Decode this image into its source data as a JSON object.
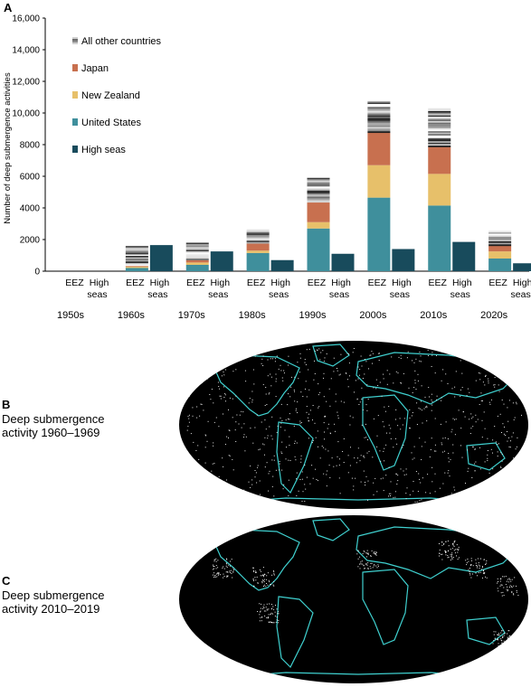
{
  "panel_a": {
    "letter": "A"
  },
  "panel_b": {
    "letter": "B",
    "caption_line1": "Deep submergence",
    "caption_line2": "activity 1960–1969"
  },
  "panel_c": {
    "letter": "C",
    "caption_line1": "Deep submergence",
    "caption_line2": "activity 2010–2019"
  },
  "chart_data": {
    "type": "bar",
    "stacked": true,
    "ylabel": "Number of deep submergence activities",
    "ylim": [
      0,
      16000
    ],
    "yticks": [
      "0",
      "2000",
      "4000",
      "6000",
      "8000",
      "10,000",
      "12,000",
      "14,000",
      "16,000"
    ],
    "ytick_values": [
      0,
      2000,
      4000,
      6000,
      8000,
      10000,
      12000,
      14000,
      16000
    ],
    "decades": [
      "1950s",
      "1960s",
      "1970s",
      "1980s",
      "1990s",
      "2000s",
      "2010s",
      "2020s"
    ],
    "bar_labels": {
      "eez": "EEZ",
      "high_seas_line1": "High",
      "high_seas_line2": "seas"
    },
    "legend": [
      {
        "name": "All other countries",
        "color": "#c9c9c9"
      },
      {
        "name": "Japan",
        "color": "#c8704f"
      },
      {
        "name": "New Zealand",
        "color": "#e7c06a"
      },
      {
        "name": "United States",
        "color": "#3f8f9c"
      },
      {
        "name": "High seas",
        "color": "#184b5c"
      }
    ],
    "eez_series": [
      {
        "name": "United States",
        "color": "#3f8f9c",
        "values": [
          0,
          200,
          400,
          1150,
          2700,
          4650,
          4150,
          800
        ]
      },
      {
        "name": "New Zealand",
        "color": "#e7c06a",
        "values": [
          0,
          80,
          150,
          150,
          400,
          2050,
          2000,
          450
        ]
      },
      {
        "name": "Japan",
        "color": "#c8704f",
        "values": [
          0,
          60,
          150,
          450,
          1250,
          2050,
          1700,
          350
        ]
      },
      {
        "name": "All other countries",
        "color": "#c9c9c9",
        "values": [
          0,
          1250,
          1100,
          900,
          1550,
          2000,
          2450,
          950
        ]
      }
    ],
    "high_seas": {
      "name": "High seas",
      "color": "#184b5c",
      "values": [
        0,
        1650,
        1250,
        700,
        1100,
        1400,
        1850,
        500
      ]
    },
    "legend_placement": "top-left",
    "grid": false
  }
}
